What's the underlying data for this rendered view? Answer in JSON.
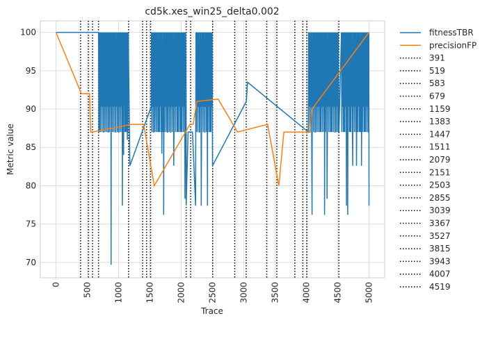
{
  "chart_data": {
    "type": "line",
    "title": "cd5k.xes_win25_delta0.002",
    "xlabel": "Trace",
    "ylabel": "Metric value",
    "xlim": [
      -250,
      5250
    ],
    "ylim": [
      68,
      101.5
    ],
    "xticks": [
      0,
      500,
      1000,
      1500,
      2000,
      2500,
      3000,
      3500,
      4000,
      4500,
      5000
    ],
    "yticks": [
      70,
      75,
      80,
      85,
      90,
      95,
      100
    ],
    "grid": true,
    "legend": "outside-right",
    "series": [
      {
        "name": "fitnessTBR",
        "color": "#1f77b4",
        "base": 100,
        "dense_regions": [
          [
            680,
            1159
          ],
          [
            1520,
            2079
          ],
          [
            2230,
            2503
          ],
          [
            4030,
            4519
          ],
          [
            4560,
            5000
          ]
        ],
        "dense_floor": 87,
        "dense_mid": 90.3,
        "dips": [
          [
            700,
            87
          ],
          [
            760,
            87
          ],
          [
            835,
            87
          ],
          [
            880,
            69.7
          ],
          [
            950,
            87
          ],
          [
            1000,
            87
          ],
          [
            1060,
            77.4
          ],
          [
            1080,
            84
          ],
          [
            1110,
            87
          ],
          [
            1140,
            86
          ],
          [
            1180,
            82.6
          ],
          [
            1560,
            87
          ],
          [
            1600,
            90
          ],
          [
            1640,
            87
          ],
          [
            1690,
            84.2
          ],
          [
            1700,
            87
          ],
          [
            1720,
            76.2
          ],
          [
            1780,
            87
          ],
          [
            1830,
            87
          ],
          [
            1880,
            82.6
          ],
          [
            1950,
            87
          ],
          [
            2000,
            87
          ],
          [
            2060,
            78.3
          ],
          [
            2080,
            77.5
          ],
          [
            2110,
            87
          ],
          [
            2180,
            87
          ],
          [
            2230,
            77.4
          ],
          [
            2290,
            87
          ],
          [
            2320,
            77.4
          ],
          [
            2380,
            87
          ],
          [
            2420,
            77.4
          ],
          [
            2460,
            87
          ],
          [
            2500,
            82.6
          ],
          [
            3040,
            91
          ],
          [
            3060,
            93.5
          ],
          [
            4060,
            87
          ],
          [
            4090,
            76.2
          ],
          [
            4140,
            87
          ],
          [
            4220,
            87
          ],
          [
            4290,
            76.2
          ],
          [
            4330,
            78.3
          ],
          [
            4400,
            87
          ],
          [
            4460,
            87
          ],
          [
            4520,
            87
          ],
          [
            4600,
            87
          ],
          [
            4640,
            77.4
          ],
          [
            4660,
            76.2
          ],
          [
            4700,
            87
          ],
          [
            4740,
            82.6
          ],
          [
            4800,
            82.6
          ],
          [
            4860,
            87
          ],
          [
            4880,
            82.6
          ],
          [
            4930,
            87
          ],
          [
            4990,
            87
          ],
          [
            5000,
            77.4
          ]
        ]
      },
      {
        "name": "precisionFP",
        "color": "#ff7f0e",
        "base": 100,
        "dips": [
          [
            405,
            92
          ],
          [
            535,
            92
          ],
          [
            555,
            87
          ],
          [
            580,
            87
          ],
          [
            1200,
            88
          ],
          [
            1240,
            88
          ],
          [
            1400,
            88
          ],
          [
            1570,
            80
          ],
          [
            2140,
            88
          ],
          [
            2190,
            88
          ],
          [
            2250,
            91
          ],
          [
            2590,
            91.3
          ],
          [
            2900,
            87
          ],
          [
            3380,
            88
          ],
          [
            3560,
            80
          ],
          [
            3640,
            87
          ],
          [
            3820,
            87
          ],
          [
            3950,
            87
          ],
          [
            4050,
            87
          ],
          [
            4090,
            90
          ]
        ]
      }
    ],
    "vlines": {
      "style": "dotted",
      "color": "#000000",
      "values": [
        391,
        519,
        583,
        679,
        1159,
        1383,
        1447,
        1511,
        2079,
        2151,
        2503,
        2855,
        3039,
        3367,
        3527,
        3815,
        3943,
        4007,
        4519
      ],
      "labels": [
        "391",
        "519",
        "583",
        "679",
        "1159",
        "1383",
        "1447",
        "1511",
        "2079",
        "2151",
        "2503",
        "2855",
        "3039",
        "3367",
        "3527",
        "3815",
        "3943",
        "4007",
        "4519"
      ]
    },
    "x_tick_labels": [
      "0",
      "500",
      "1000",
      "1500",
      "2000",
      "2500",
      "3000",
      "3500",
      "4000",
      "4500",
      "5000"
    ],
    "y_tick_labels": [
      "70",
      "75",
      "80",
      "85",
      "90",
      "95",
      "100"
    ]
  }
}
